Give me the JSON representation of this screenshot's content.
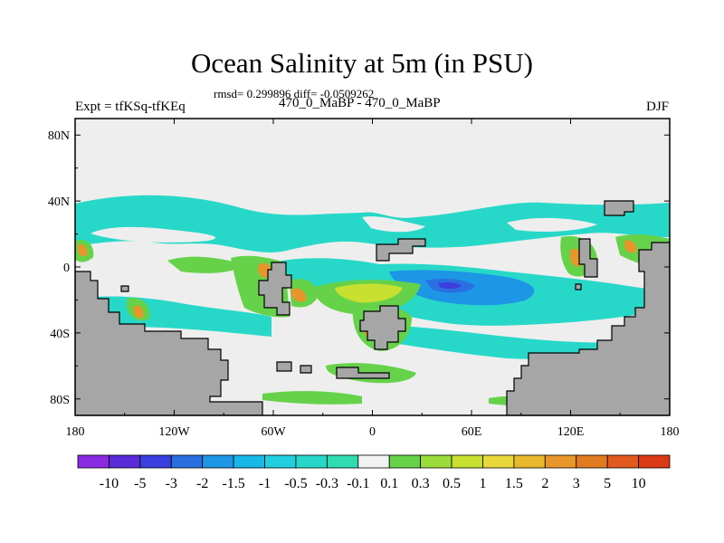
{
  "title": "Ocean Salinity at 5m (in PSU)",
  "stats": "rmsd= 0.299896 diff= -0.0509262",
  "expt": "Expt = tfKSq-tfKEq",
  "subtitle": "470_0_MaBP - 470_0_MaBP",
  "season": "DJF",
  "axes": {
    "x_ticks": [
      {
        "value": -180,
        "label": "180"
      },
      {
        "value": -120,
        "label": "120W"
      },
      {
        "value": -60,
        "label": "60W"
      },
      {
        "value": 0,
        "label": "0"
      },
      {
        "value": 60,
        "label": "60E"
      },
      {
        "value": 120,
        "label": "120E"
      },
      {
        "value": 180,
        "label": "180"
      }
    ],
    "y_ticks": [
      {
        "value": 80,
        "label": "80N"
      },
      {
        "value": 40,
        "label": "40N"
      },
      {
        "value": 0,
        "label": "0"
      },
      {
        "value": -40,
        "label": "40S"
      },
      {
        "value": -80,
        "label": "80S"
      }
    ],
    "xlim": [
      -180,
      180
    ],
    "ylim": [
      -90,
      90
    ]
  },
  "colorbar": {
    "colors": [
      "#8a2be2",
      "#5b2bd8",
      "#3a3fdd",
      "#2a6fe0",
      "#1e96e6",
      "#17b8e8",
      "#22cfe0",
      "#27d8c8",
      "#2fdcb0",
      "#f2f2f2",
      "#66d24a",
      "#9bdc3a",
      "#c8e030",
      "#e8d83a",
      "#e8b82e",
      "#e8962a",
      "#e27a22",
      "#e05a1e",
      "#dc3a14"
    ],
    "labels": [
      "-10",
      "-5",
      "-3",
      "-2",
      "-1.5",
      "-1",
      "-0.5",
      "-0.3",
      "-0.1",
      "0.1",
      "0.3",
      "0.5",
      "1",
      "1.5",
      "2",
      "3",
      "5",
      "10"
    ]
  },
  "colors": {
    "land": "#a6a6a6",
    "ocean_neutral": "#eeeeee",
    "fresh_cyan": "#27d8c8",
    "fresh_blue": "#1e96e6",
    "salty_green": "#66d24a",
    "salty_yellow": "#c8e030",
    "salty_orange": "#e8962a"
  }
}
